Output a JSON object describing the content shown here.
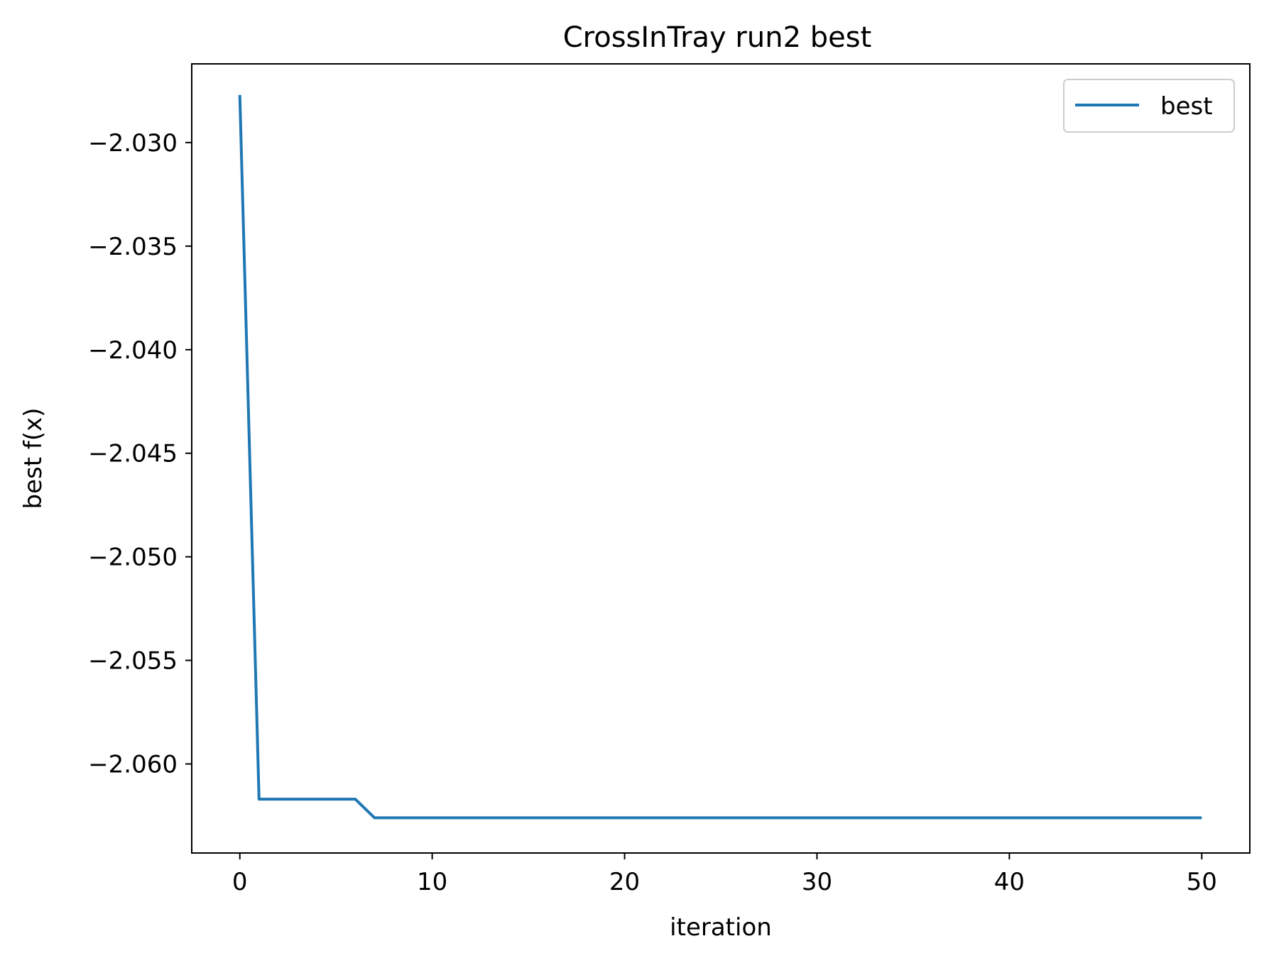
{
  "chart_data": {
    "type": "line",
    "title": "CrossInTray run2 best",
    "xlabel": "iteration",
    "ylabel": "best f(x)",
    "xlim": [
      -2.5,
      52.5
    ],
    "ylim": [
      -2.0643,
      -2.0262
    ],
    "xticks": [
      0,
      10,
      20,
      30,
      40,
      50
    ],
    "xtick_labels": [
      "0",
      "10",
      "20",
      "30",
      "40",
      "50"
    ],
    "yticks": [
      -2.03,
      -2.035,
      -2.04,
      -2.045,
      -2.05,
      -2.055,
      -2.06
    ],
    "ytick_labels": [
      "−2.030",
      "−2.035",
      "−2.040",
      "−2.045",
      "−2.050",
      "−2.055",
      "−2.060"
    ],
    "grid": false,
    "legend_position": "top-right",
    "series": [
      {
        "name": "best",
        "color": "#1f77b4",
        "x": [
          0,
          1,
          2,
          3,
          4,
          5,
          6,
          7,
          8,
          9,
          10,
          11,
          12,
          13,
          14,
          15,
          16,
          17,
          18,
          19,
          20,
          21,
          22,
          23,
          24,
          25,
          26,
          27,
          28,
          29,
          30,
          31,
          32,
          33,
          34,
          35,
          36,
          37,
          38,
          39,
          40,
          41,
          42,
          43,
          44,
          45,
          46,
          47,
          48,
          49,
          50
        ],
        "y": [
          -2.0277,
          -2.0617,
          -2.0617,
          -2.0617,
          -2.0617,
          -2.0617,
          -2.0617,
          -2.0626,
          -2.0626,
          -2.0626,
          -2.0626,
          -2.0626,
          -2.0626,
          -2.0626,
          -2.0626,
          -2.0626,
          -2.0626,
          -2.0626,
          -2.0626,
          -2.0626,
          -2.0626,
          -2.0626,
          -2.0626,
          -2.0626,
          -2.0626,
          -2.0626,
          -2.0626,
          -2.0626,
          -2.0626,
          -2.0626,
          -2.0626,
          -2.0626,
          -2.0626,
          -2.0626,
          -2.0626,
          -2.0626,
          -2.0626,
          -2.0626,
          -2.0626,
          -2.0626,
          -2.0626,
          -2.0626,
          -2.0626,
          -2.0626,
          -2.0626,
          -2.0626,
          -2.0626,
          -2.0626,
          -2.0626,
          -2.0626,
          -2.0626
        ]
      }
    ]
  }
}
